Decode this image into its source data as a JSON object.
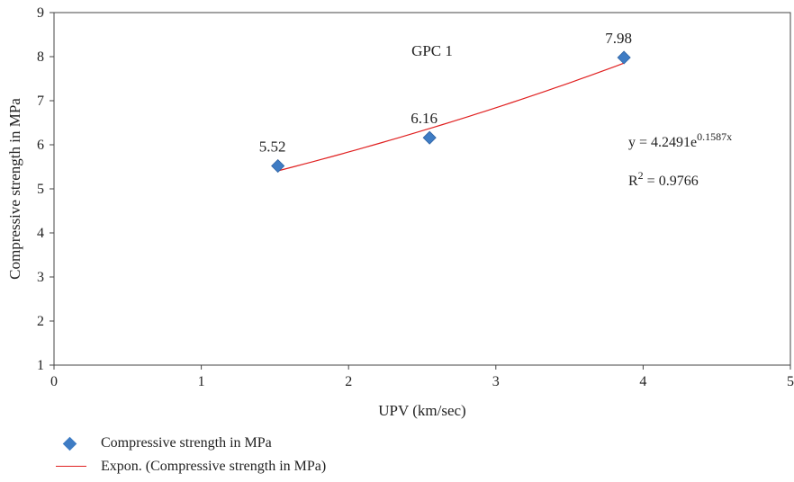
{
  "chart_data": {
    "type": "scatter",
    "title": "GPC 1",
    "xlabel": "UPV (km/sec)",
    "ylabel": "Compressive strength in MPa",
    "xlim": [
      0,
      5
    ],
    "ylim": [
      1,
      9
    ],
    "x_ticks": [
      "0",
      "1",
      "2",
      "3",
      "4",
      "5"
    ],
    "y_ticks": [
      "1",
      "2",
      "3",
      "4",
      "5",
      "6",
      "7",
      "8",
      "9"
    ],
    "grid": false,
    "series": [
      {
        "name": "Compressive strength in MPa",
        "marker": "diamond",
        "color": "#3e7cc4",
        "points": [
          {
            "x": 1.52,
            "y": 5.52,
            "label": "5.52"
          },
          {
            "x": 2.55,
            "y": 6.16,
            "label": "6.16"
          },
          {
            "x": 3.87,
            "y": 7.98,
            "label": "7.98"
          }
        ]
      }
    ],
    "trendline": {
      "name": "Expon. (Compressive strength in MPa)",
      "type": "exponential",
      "color": "#e02020",
      "coef_a": 4.2491,
      "coef_b": 0.1587,
      "x_range": [
        1.52,
        3.87
      ],
      "equation_prefix": "y = 4.2491e",
      "equation_exponent": "0.1587x",
      "r2_prefix": "R",
      "r2_sup": "2",
      "r2_suffix": " = 0.9766"
    },
    "legend_position": "bottom-left"
  }
}
